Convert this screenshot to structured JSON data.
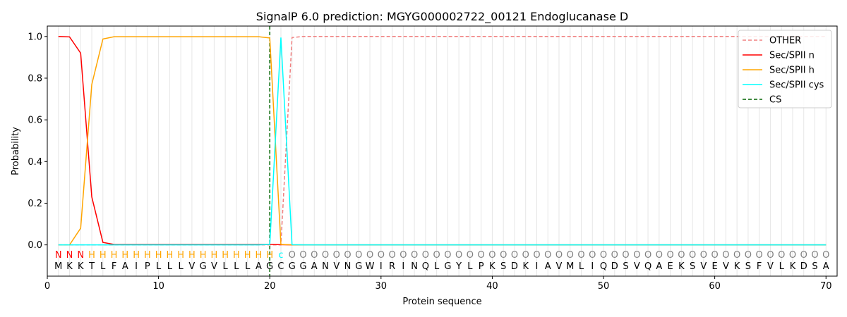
{
  "chart_data": {
    "type": "line",
    "title": "SignalP 6.0 prediction: MGYG000002722_00121 Endoglucanase D",
    "xlabel": "Protein sequence",
    "ylabel": "Probability",
    "xlim": [
      0,
      71
    ],
    "ylim": [
      -0.15,
      1.05
    ],
    "xticks": [
      0,
      10,
      20,
      30,
      40,
      50,
      60,
      70
    ],
    "yticks": [
      0.0,
      0.2,
      0.4,
      0.6,
      0.8,
      1.0
    ],
    "xtick_labels": [
      "0",
      "10",
      "20",
      "30",
      "40",
      "50",
      "60",
      "70"
    ],
    "ytick_labels": [
      "0.0",
      "0.2",
      "0.4",
      "0.6",
      "0.8",
      "1.0"
    ],
    "grid": "vertical lines at each residue",
    "legend_position": "top-right",
    "sequence": [
      "M",
      "K",
      "K",
      "T",
      "L",
      "F",
      "A",
      "I",
      "P",
      "L",
      "L",
      "L",
      "V",
      "G",
      "V",
      "L",
      "L",
      "L",
      "A",
      "G",
      "C",
      "G",
      "G",
      "A",
      "N",
      "V",
      "N",
      "G",
      "W",
      "I",
      "R",
      "I",
      "N",
      "Q",
      "L",
      "G",
      "Y",
      "L",
      "P",
      "K",
      "S",
      "D",
      "K",
      "I",
      "A",
      "V",
      "M",
      "L",
      "I",
      "Q",
      "D",
      "S",
      "V",
      "Q",
      "A",
      "E",
      "K",
      "S",
      "V",
      "E",
      "V",
      "K",
      "S",
      "F",
      "V",
      "L",
      "K",
      "D",
      "S",
      "A"
    ],
    "annotation": [
      "N",
      "N",
      "N",
      "H",
      "H",
      "H",
      "H",
      "H",
      "H",
      "H",
      "H",
      "H",
      "H",
      "H",
      "H",
      "H",
      "H",
      "H",
      "H",
      "H",
      "c",
      "O",
      "O",
      "O",
      "O",
      "O",
      "O",
      "O",
      "O",
      "O",
      "O",
      "O",
      "O",
      "O",
      "O",
      "O",
      "O",
      "O",
      "O",
      "O",
      "O",
      "O",
      "O",
      "O",
      "O",
      "O",
      "O",
      "O",
      "O",
      "O",
      "O",
      "O",
      "O",
      "O",
      "O",
      "O",
      "O",
      "O",
      "O",
      "O",
      "O",
      "O",
      "O",
      "O",
      "O",
      "O",
      "O",
      "O",
      "O",
      "O"
    ],
    "annotation_colors": {
      "N": "#ff0000",
      "H": "#ffa500",
      "c": "#00ffff",
      "O": "#808080"
    },
    "cs_position": 20,
    "series": [
      {
        "name": "OTHER",
        "color": "#f08080",
        "dash": true,
        "sparse": {
          "21": 0.0,
          "22": 0.995,
          "23": 1.0
        },
        "default_before": 0.0,
        "default_after": 1.0
      },
      {
        "name": "Sec/SPII n",
        "color": "#ff0000",
        "dash": false,
        "sparse": {
          "1": 1.0,
          "2": 0.998,
          "3": 0.92,
          "4": 0.23,
          "5": 0.012,
          "6": 0.002,
          "20": 0.002,
          "21": 0.001
        },
        "default_before": 0.0,
        "default_after": 0.0
      },
      {
        "name": "Sec/SPII h",
        "color": "#ffa500",
        "dash": false,
        "sparse": {
          "1": 0.0,
          "2": 0.0,
          "3": 0.08,
          "4": 0.77,
          "5": 0.988,
          "6": 0.999,
          "19": 0.999,
          "20": 0.993,
          "21": 0.002
        },
        "default_before": 0.0,
        "default_after": 0.0
      },
      {
        "name": "Sec/SPII cys",
        "color": "#00ffff",
        "dash": false,
        "sparse": {
          "20": 0.002,
          "21": 0.995,
          "22": 0.001
        },
        "default_before": 0.0,
        "default_after": 0.0
      },
      {
        "name": "CS",
        "color": "#006400",
        "dash": true
      }
    ]
  }
}
